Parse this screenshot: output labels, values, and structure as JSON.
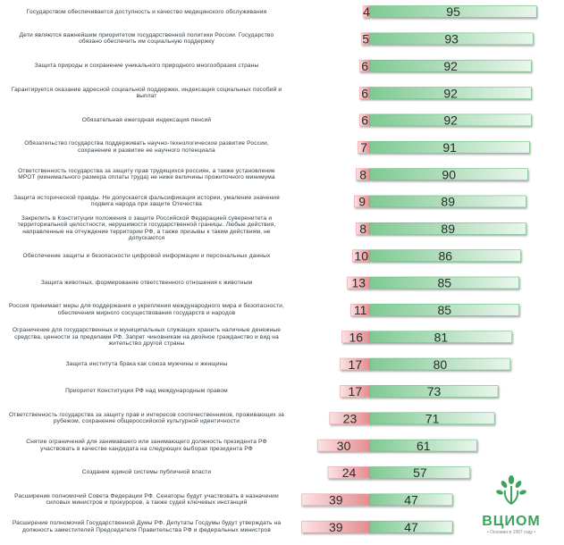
{
  "chart_data": {
    "type": "bar",
    "orientation": "horizontal-diverging",
    "series": [
      {
        "name": "",
        "color": "#e9a0a3"
      },
      {
        "name": "",
        "color": "#a9dcb5"
      }
    ],
    "rows": [
      {
        "label": "Государством обеспечивается доступность и качество медицинского обслуживания",
        "neg": 4,
        "pos": 95
      },
      {
        "label": "Дети являются важнейшим приоритетом государственной политики России. Государство обязано обеспечить им социальную поддержку",
        "neg": 5,
        "pos": 93
      },
      {
        "label": "Защита природы и сохранение уникального природного многообразия страны",
        "neg": 6,
        "pos": 92
      },
      {
        "label": "Гарантируется оказание адресной социальной поддержки, индексация социальных пособий и выплат",
        "neg": 6,
        "pos": 92
      },
      {
        "label": "Обязательная ежегодная индексация пенсий",
        "neg": 6,
        "pos": 92
      },
      {
        "label": "Обязательство государства поддерживать научно-технологическое развитие России, сохранение и развитие ее научного потенциала",
        "neg": 7,
        "pos": 91
      },
      {
        "label": "Ответственность государства за защиту прав трудящихся россиян, а также установление МРОТ (минимального размера оплаты труда) не ниже величины прожиточного минимума",
        "neg": 8,
        "pos": 90
      },
      {
        "label": "Защита исторической правды. Не допускается фальсификация истории, умаление значения подвига народа при защите Отечества",
        "neg": 9,
        "pos": 89
      },
      {
        "label": "Закрепить в Конституции положения о защите Российской Федерацией суверенитета и территориальной целостности, нерушимости государственной границы. Любые действия, направленные на отчуждение территории РФ, а также призывы к таким действиям, не допускаются",
        "neg": 8,
        "pos": 89
      },
      {
        "label": "Обеспечение защиты и безопасности цифровой информации и персональных данных",
        "neg": 10,
        "pos": 86
      },
      {
        "label": "Защита животных, формирование ответственного отношения к животным",
        "neg": 13,
        "pos": 85
      },
      {
        "label": "Россия принимает меры для поддержания и укрепления международного мира и безопасности, обеспечения мирного сосуществования государств и народов",
        "neg": 11,
        "pos": 85
      },
      {
        "label": "Ограничение для государственных и муниципальных служащих хранить наличные денежные средства, ценности за пределами РФ. Запрет чиновникам на двойное гражданство и вид на жительство другой страны",
        "neg": 16,
        "pos": 81
      },
      {
        "label": "Защита института брака как союза мужчины и женщины",
        "neg": 17,
        "pos": 80
      },
      {
        "label": "Приоритет Конституции РФ над международным правом",
        "neg": 17,
        "pos": 73
      },
      {
        "label": "Ответственность государства за защиту прав и интересов соотечественников, проживающих за рубежом, сохранение общероссийской культурной идентичности",
        "neg": 23,
        "pos": 71
      },
      {
        "label": "Снятие ограничений для занимавшего или занимающего должность президента РФ участвовать в качестве кандидата на следующих выборах президента РФ",
        "neg": 30,
        "pos": 61
      },
      {
        "label": "Создание единой системы публичной власти",
        "neg": 24,
        "pos": 57
      },
      {
        "label": "Расширение полномочий Совета Федерации РФ. Сенаторы будут участвовать в назначении силовых министров и прокуроров, а также судей ключевых инстанций",
        "neg": 39,
        "pos": 47
      },
      {
        "label": "Расширение полномочий Государственной Думы РФ. Депутаты Госдумы будут утверждать на должность заместителей Председателя Правительства РФ и федеральных министров",
        "neg": 39,
        "pos": 47
      }
    ],
    "xlim": [
      -40,
      100
    ],
    "grid": false,
    "legend": "none"
  },
  "logo": {
    "name": "ВЦИОМ",
    "tagline": "• Основан в 1987 году •",
    "color": "#3aa35c"
  }
}
